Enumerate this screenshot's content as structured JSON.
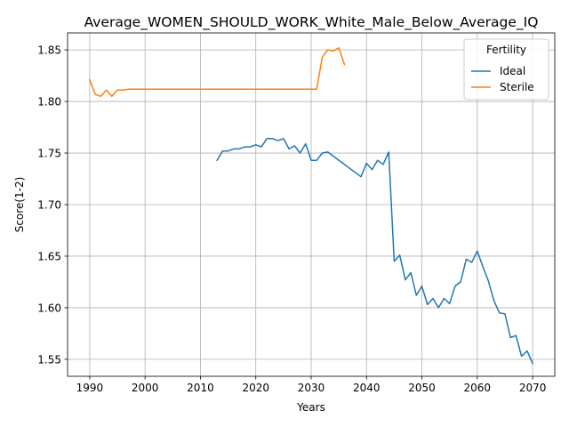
{
  "chart_data": {
    "type": "line",
    "title": "Average_WOMEN_SHOULD_WORK_White_Male_Below_Average_IQ",
    "xlabel": "Years",
    "ylabel": "Score(1-2)",
    "xlim": [
      1986.0,
      2074.0
    ],
    "ylim": [
      1.5335,
      1.8665
    ],
    "xticks": [
      1990,
      2000,
      2010,
      2020,
      2030,
      2040,
      2050,
      2060,
      2070
    ],
    "yticks": [
      1.55,
      1.6,
      1.65,
      1.7,
      1.75,
      1.8,
      1.85
    ],
    "ytick_labels": [
      "1.55",
      "1.60",
      "1.65",
      "1.70",
      "1.75",
      "1.80",
      "1.85"
    ],
    "grid": true,
    "legend": {
      "title": "Fertility",
      "position": "top-right"
    },
    "series": [
      {
        "name": "Ideal",
        "color": "#1f77b4",
        "x": [
          2013,
          2014,
          2015,
          2016,
          2017,
          2018,
          2019,
          2020,
          2021,
          2022,
          2023,
          2024,
          2025,
          2026,
          2027,
          2028,
          2029,
          2030,
          2031,
          2032,
          2033,
          2039,
          2040,
          2041,
          2042,
          2043,
          2044,
          2045,
          2046,
          2047,
          2048,
          2049,
          2050,
          2051,
          2052,
          2053,
          2054,
          2055,
          2056,
          2057,
          2058,
          2059,
          2060,
          2061,
          2062,
          2063,
          2064,
          2065,
          2066,
          2067,
          2068,
          2069,
          2070
        ],
        "y": [
          1.743,
          1.752,
          1.752,
          1.754,
          1.754,
          1.756,
          1.756,
          1.758,
          1.756,
          1.764,
          1.764,
          1.762,
          1.764,
          1.754,
          1.757,
          1.75,
          1.759,
          1.743,
          1.743,
          1.75,
          1.751,
          1.727,
          1.74,
          1.734,
          1.743,
          1.739,
          1.751,
          1.645,
          1.651,
          1.627,
          1.634,
          1.612,
          1.621,
          1.603,
          1.609,
          1.6,
          1.609,
          1.604,
          1.621,
          1.625,
          1.647,
          1.644,
          1.655,
          1.64,
          1.626,
          1.607,
          1.595,
          1.594,
          1.571,
          1.573,
          1.553,
          1.558,
          1.546
        ]
      },
      {
        "name": "Sterile",
        "color": "#ff7f0e",
        "x": [
          1990,
          1991,
          1992,
          1993,
          1994,
          1995,
          1996,
          1997,
          1998,
          1999,
          2000,
          2005,
          2010,
          2015,
          2020,
          2025,
          2030,
          2031,
          2032,
          2033,
          2034,
          2035,
          2036
        ],
        "y": [
          1.821,
          1.807,
          1.805,
          1.811,
          1.805,
          1.811,
          1.811,
          1.812,
          1.812,
          1.812,
          1.812,
          1.812,
          1.812,
          1.812,
          1.812,
          1.812,
          1.812,
          1.812,
          1.843,
          1.85,
          1.849,
          1.852,
          1.836
        ]
      }
    ]
  }
}
